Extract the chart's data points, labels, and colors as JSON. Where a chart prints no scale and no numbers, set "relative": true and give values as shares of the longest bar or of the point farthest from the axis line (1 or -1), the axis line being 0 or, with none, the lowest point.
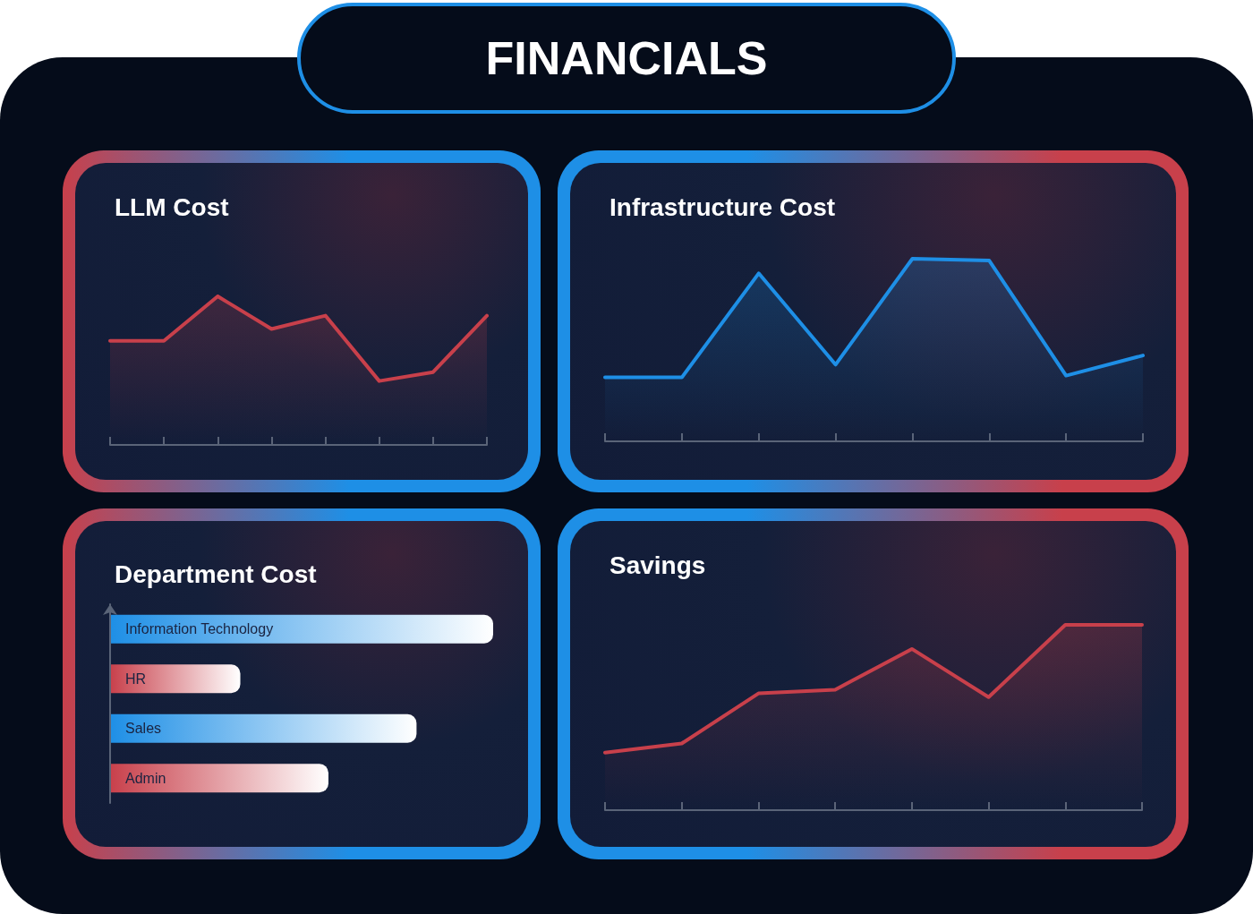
{
  "chart_data": [
    {
      "type": "other",
      "title": "FINANCIALS"
    },
    {
      "type": "area",
      "title": "LLM Cost",
      "relative": true,
      "categories": [
        null,
        null,
        null,
        null,
        null,
        null,
        null,
        null
      ],
      "series": [
        {
          "color": "#c8404b",
          "values": [
            0.7,
            0.7,
            1,
            0.78,
            0.87,
            0.43,
            0.49,
            0.87
          ]
        }
      ]
    },
    {
      "type": "area",
      "title": "Infrastructure Cost",
      "relative": true,
      "categories": [
        null,
        null,
        null,
        null,
        null,
        null,
        null,
        null
      ],
      "series": [
        {
          "color": "#1e8fe6",
          "values": [
            0.35,
            0.35,
            0.92,
            0.42,
            1,
            0.99,
            0.36,
            0.47
          ]
        }
      ]
    },
    {
      "type": "bar",
      "title": "Department Cost",
      "orientation": "horizontal",
      "relative": true,
      "categories": [
        "Information Technology",
        "HR",
        "Sales",
        "Admin"
      ],
      "values": [
        1,
        0.34,
        0.8,
        0.57
      ],
      "colors": [
        "#1e8fe6",
        "#c8404b",
        "#1e8fe6",
        "#c8404b"
      ]
    },
    {
      "type": "area",
      "title": "Savings",
      "relative": true,
      "categories": [
        null,
        null,
        null,
        null,
        null,
        null,
        null,
        null
      ],
      "series": [
        {
          "color": "#c8404b",
          "values": [
            0.31,
            0.36,
            0.63,
            0.65,
            0.87,
            0.61,
            1,
            1
          ]
        }
      ]
    }
  ]
}
